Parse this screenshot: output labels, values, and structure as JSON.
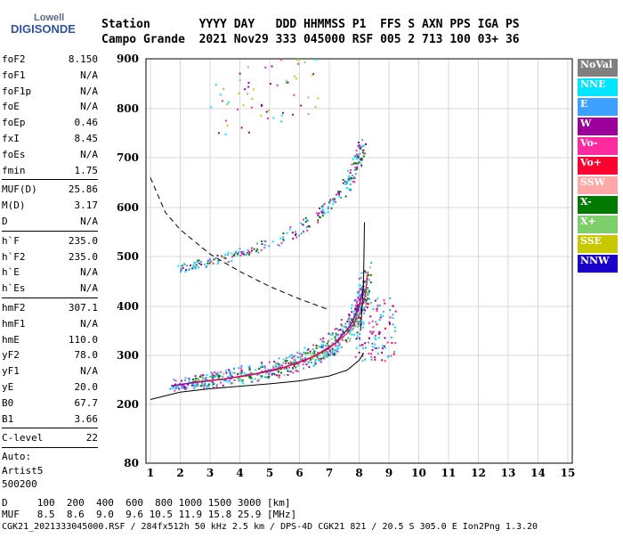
{
  "logo": {
    "top": "Lowell",
    "main": "DIGISONDE"
  },
  "header": {
    "row1": "Station       YYYY DAY   DDD HHMMSS P1  FFS S AXN PPS IGA PS",
    "row2": "Campo Grande  2021 Nov29 333 045000 RSF 005 2 713 100 03+ 36"
  },
  "params_group1": [
    {
      "name": "foF2",
      "value": "8.150"
    },
    {
      "name": "foF1",
      "value": "N/A"
    },
    {
      "name": "foF1p",
      "value": "N/A"
    },
    {
      "name": "foE",
      "value": "N/A"
    },
    {
      "name": "foEp",
      "value": "0.46"
    },
    {
      "name": "fxI",
      "value": "8.45"
    },
    {
      "name": "foEs",
      "value": "N/A"
    },
    {
      "name": "fmin",
      "value": "1.75"
    }
  ],
  "params_group2": [
    {
      "name": "MUF(D)",
      "value": "25.86"
    },
    {
      "name": "M(D)",
      "value": "3.17"
    },
    {
      "name": "D",
      "value": "N/A"
    }
  ],
  "params_group3": [
    {
      "name": "h`F",
      "value": "235.0"
    },
    {
      "name": "h`F2",
      "value": "235.0"
    },
    {
      "name": "h`E",
      "value": "N/A"
    },
    {
      "name": "h`Es",
      "value": "N/A"
    }
  ],
  "params_group4": [
    {
      "name": "hmF2",
      "value": "307.1"
    },
    {
      "name": "hmF1",
      "value": "N/A"
    },
    {
      "name": "hmE",
      "value": "110.0"
    },
    {
      "name": "yF2",
      "value": "78.0"
    },
    {
      "name": "yF1",
      "value": "N/A"
    },
    {
      "name": "yE",
      "value": "20.0"
    },
    {
      "name": "B0",
      "value": "67.7"
    },
    {
      "name": "B1",
      "value": "3.66"
    }
  ],
  "clevel": {
    "name": "C-level",
    "value": "22"
  },
  "auto": [
    "Auto:",
    "Artist5",
    "500200"
  ],
  "legend": [
    {
      "label": "NoVal",
      "color": "#808080"
    },
    {
      "label": "NNE",
      "color": "#00e5ff"
    },
    {
      "label": "E",
      "color": "#3ea0ff"
    },
    {
      "label": "W",
      "color": "#9b009b"
    },
    {
      "label": "Vo-",
      "color": "#ff2aa0"
    },
    {
      "label": "Vo+",
      "color": "#ff0030"
    },
    {
      "label": "SSW",
      "color": "#ffa8a8"
    },
    {
      "label": "X-",
      "color": "#007a00"
    },
    {
      "label": "X+",
      "color": "#7ccf6a"
    },
    {
      "label": "SSE",
      "color": "#c8c800"
    },
    {
      "label": "NNW",
      "color": "#1a00c8"
    }
  ],
  "footer": {
    "row1": "D     100  200  400  600  800 1000 1500 3000 [km]",
    "row2": "MUF   8.5  8.6  9.0  9.6 10.5 11.9 15.8 25.9 [MHz]",
    "row3": "CGK21_2021333045000.RSF / 284fx512h 50 kHz 2.5 km / DPS-4D CGK21 821 / 20.5 S 305.0 E Ion2Png 1.3.20"
  },
  "chart_data": {
    "type": "scatter",
    "title": "",
    "xlabel": "",
    "ylabel": "",
    "x_ticks": [
      1,
      2,
      3,
      4,
      5,
      6,
      7,
      8,
      9,
      10,
      11,
      12,
      13,
      14,
      15
    ],
    "y_ticks": [
      80,
      200,
      300,
      400,
      500,
      600,
      700,
      800,
      900
    ],
    "xlim": [
      0.85,
      15.15
    ],
    "ylim_note": "non-linear virtual height axis, 80 at bottom, 900 at top",
    "ylim": [
      80,
      900
    ],
    "series": [
      {
        "name": "O trace (F2)",
        "x": [
          1.7,
          2.5,
          3.5,
          4.5,
          5.5,
          6.5,
          7.2,
          7.7,
          8.0,
          8.15
        ],
        "y": [
          238,
          245,
          252,
          262,
          276,
          298,
          325,
          360,
          400,
          440
        ]
      },
      {
        "name": "X trace (F2)",
        "x": [
          2.4,
          3.2,
          4.2,
          5.2,
          6.2,
          7.0,
          7.6,
          8.0,
          8.2,
          8.3
        ],
        "y": [
          245,
          250,
          258,
          270,
          290,
          315,
          345,
          380,
          420,
          470
        ]
      },
      {
        "name": "O trace second hop",
        "x": [
          1.9,
          3.0,
          4.0,
          5.0,
          6.0,
          6.8,
          7.4,
          7.8,
          8.0,
          8.1
        ],
        "y": [
          475,
          490,
          505,
          525,
          555,
          590,
          630,
          670,
          705,
          720
        ]
      }
    ],
    "profile_curve": {
      "x": [
        1.0,
        2.0,
        3.0,
        4.0,
        5.0,
        6.0,
        7.0,
        7.6,
        8.0,
        8.15
      ],
      "y": [
        210,
        225,
        232,
        237,
        242,
        248,
        258,
        270,
        290,
        305
      ]
    },
    "muf_curve": {
      "x": [
        1.0,
        1.5,
        2.0,
        3.0,
        4.0,
        5.0,
        6.0,
        7.0
      ],
      "y": [
        660,
        590,
        555,
        505,
        470,
        440,
        415,
        393
      ]
    },
    "fo_cusp_line": {
      "x": [
        8.05,
        8.15,
        8.18
      ],
      "y": [
        350,
        450,
        570
      ]
    }
  }
}
